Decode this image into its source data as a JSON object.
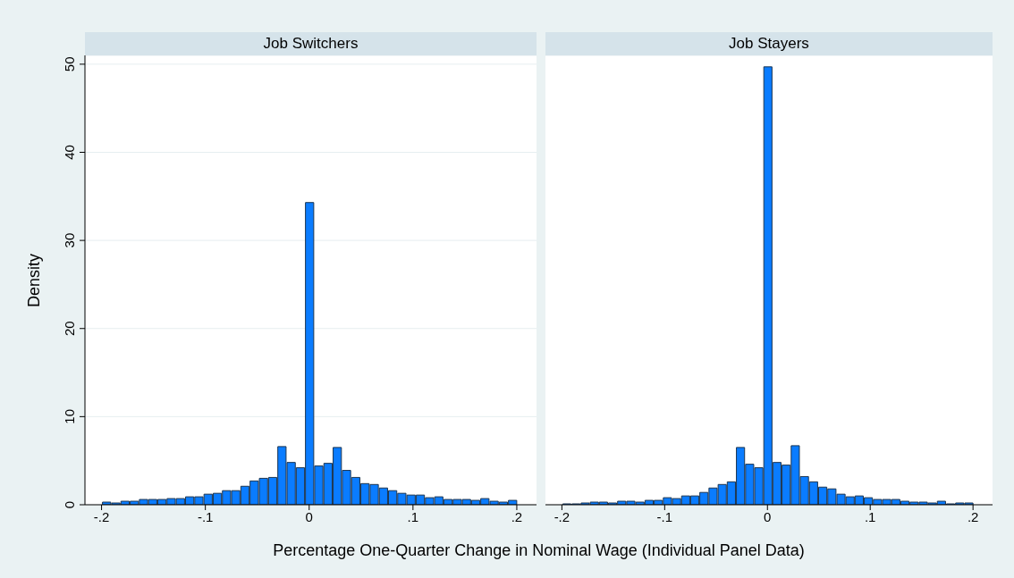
{
  "chart_data": [
    {
      "type": "histogram",
      "title": "Job Switchers",
      "xlabel": "Percentage One-Quarter Change in Nominal Wage (Individual Panel Data)",
      "ylabel": "Density",
      "color": "#0a7cff",
      "bins": [
        -0.2,
        -0.1911,
        -0.1822,
        -0.1733,
        -0.1644,
        -0.1556,
        -0.1467,
        -0.1378,
        -0.1289,
        -0.12,
        -0.1111,
        -0.1022,
        -0.0933,
        -0.0844,
        -0.0756,
        -0.0667,
        -0.0578,
        -0.0489,
        -0.04,
        -0.0311,
        -0.0222,
        -0.0133,
        -0.0044,
        0.0044,
        0.0133,
        0.0222,
        0.0311,
        0.04,
        0.0489,
        0.0578,
        0.0667,
        0.0756,
        0.0844,
        0.0933,
        0.1022,
        0.1111,
        0.12,
        0.1289,
        0.1378,
        0.1467,
        0.1556,
        0.1644,
        0.1733,
        0.1822,
        0.1911,
        0.2
      ],
      "values": [
        0.3,
        0.2,
        0.4,
        0.4,
        0.6,
        0.6,
        0.6,
        0.7,
        0.7,
        0.9,
        0.9,
        1.2,
        1.3,
        1.6,
        1.6,
        2.1,
        2.7,
        3.0,
        3.1,
        6.6,
        4.8,
        4.2,
        34.3,
        4.4,
        4.7,
        6.5,
        3.9,
        3.1,
        2.4,
        2.3,
        1.9,
        1.6,
        1.3,
        1.1,
        1.1,
        0.8,
        0.9,
        0.6,
        0.6,
        0.6,
        0.5,
        0.7,
        0.4,
        0.3,
        0.5
      ],
      "xlim": [
        -0.216,
        0.219
      ],
      "xticks": [
        {
          "value": -0.2,
          "label": "-.2"
        },
        {
          "value": -0.1,
          "label": "-.1"
        },
        0,
        {
          "value": 0.1,
          "label": ".1"
        },
        {
          "value": 0.2,
          "label": ".2"
        }
      ],
      "ylim": [
        0,
        51
      ],
      "yticks": [
        0,
        10,
        20,
        30,
        40,
        50
      ],
      "grid": "y"
    },
    {
      "type": "histogram",
      "title": "Job Stayers",
      "color": "#0a7cff",
      "tick_labels": "x",
      "bins": [
        -0.2,
        -0.1911,
        -0.1822,
        -0.1733,
        -0.1644,
        -0.1556,
        -0.1467,
        -0.1378,
        -0.1289,
        -0.12,
        -0.1111,
        -0.1022,
        -0.0933,
        -0.0844,
        -0.0756,
        -0.0667,
        -0.0578,
        -0.0489,
        -0.04,
        -0.0311,
        -0.0222,
        -0.0133,
        -0.0044,
        0.0044,
        0.0133,
        0.0222,
        0.0311,
        0.04,
        0.0489,
        0.0578,
        0.0667,
        0.0756,
        0.0844,
        0.0933,
        0.1022,
        0.1111,
        0.12,
        0.1289,
        0.1378,
        0.1467,
        0.1556,
        0.1644,
        0.1733,
        0.1822,
        0.1911,
        0.2
      ],
      "values": [
        0.1,
        0.1,
        0.2,
        0.3,
        0.3,
        0.2,
        0.4,
        0.4,
        0.3,
        0.5,
        0.5,
        0.8,
        0.7,
        1.0,
        1.0,
        1.4,
        1.9,
        2.3,
        2.6,
        6.5,
        4.6,
        4.2,
        49.7,
        4.8,
        4.5,
        6.7,
        3.2,
        2.6,
        2.0,
        1.8,
        1.2,
        0.9,
        1.0,
        0.8,
        0.6,
        0.6,
        0.6,
        0.4,
        0.3,
        0.3,
        0.2,
        0.4,
        0.1,
        0.2,
        0.2
      ],
      "xlim": [
        -0.216,
        0.219
      ],
      "xticks": [
        {
          "value": -0.2,
          "label": "-.2"
        },
        {
          "value": -0.1,
          "label": "-.1"
        },
        0,
        {
          "value": 0.1,
          "label": ".1"
        },
        {
          "value": 0.2,
          "label": ".2"
        }
      ],
      "ylim": [
        0,
        51
      ],
      "yticks": [
        0,
        10,
        20,
        30,
        40,
        50
      ],
      "grid": "y"
    }
  ]
}
